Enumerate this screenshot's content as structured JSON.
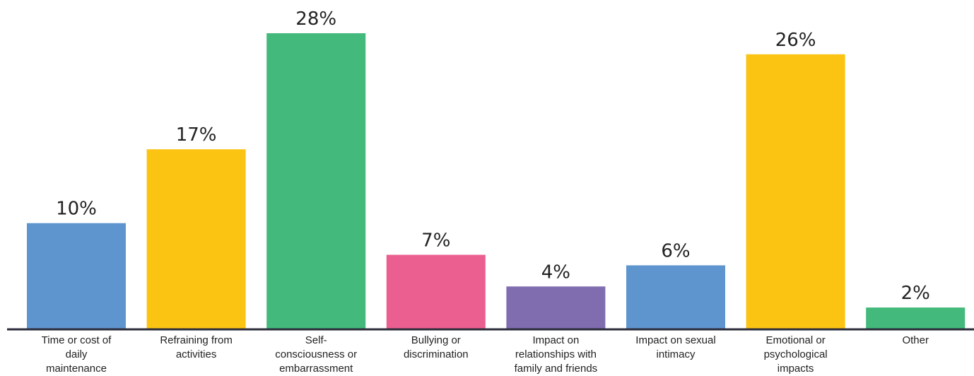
{
  "chart_data": {
    "type": "bar",
    "title": "",
    "xlabel": "",
    "ylabel": "",
    "ylim": [
      0,
      30
    ],
    "grid": false,
    "legend": "none",
    "unit": "%",
    "categories": [
      [
        "Time or cost of",
        "daily",
        "maintenance"
      ],
      [
        "Refraining from",
        "activities"
      ],
      [
        "Self-",
        "consciousness or",
        "embarrassment"
      ],
      [
        "Bullying or",
        "discrimination"
      ],
      [
        "Impact on",
        "relationships with",
        "family and friends"
      ],
      [
        "Impact on sexual",
        "intimacy"
      ],
      [
        "Emotional or",
        "psychological",
        "impacts"
      ],
      [
        "Other"
      ]
    ],
    "values": [
      10,
      17,
      28,
      7,
      4,
      6,
      26,
      2
    ],
    "labels": [
      "10%",
      "17%",
      "28%",
      "7%",
      "4%",
      "6%",
      "26%",
      "2%"
    ],
    "colors": [
      "#5f95cf",
      "#fbc413",
      "#43b97b",
      "#eb5f90",
      "#7f6daf",
      "#5f95cf",
      "#fbc413",
      "#43b97b"
    ]
  }
}
